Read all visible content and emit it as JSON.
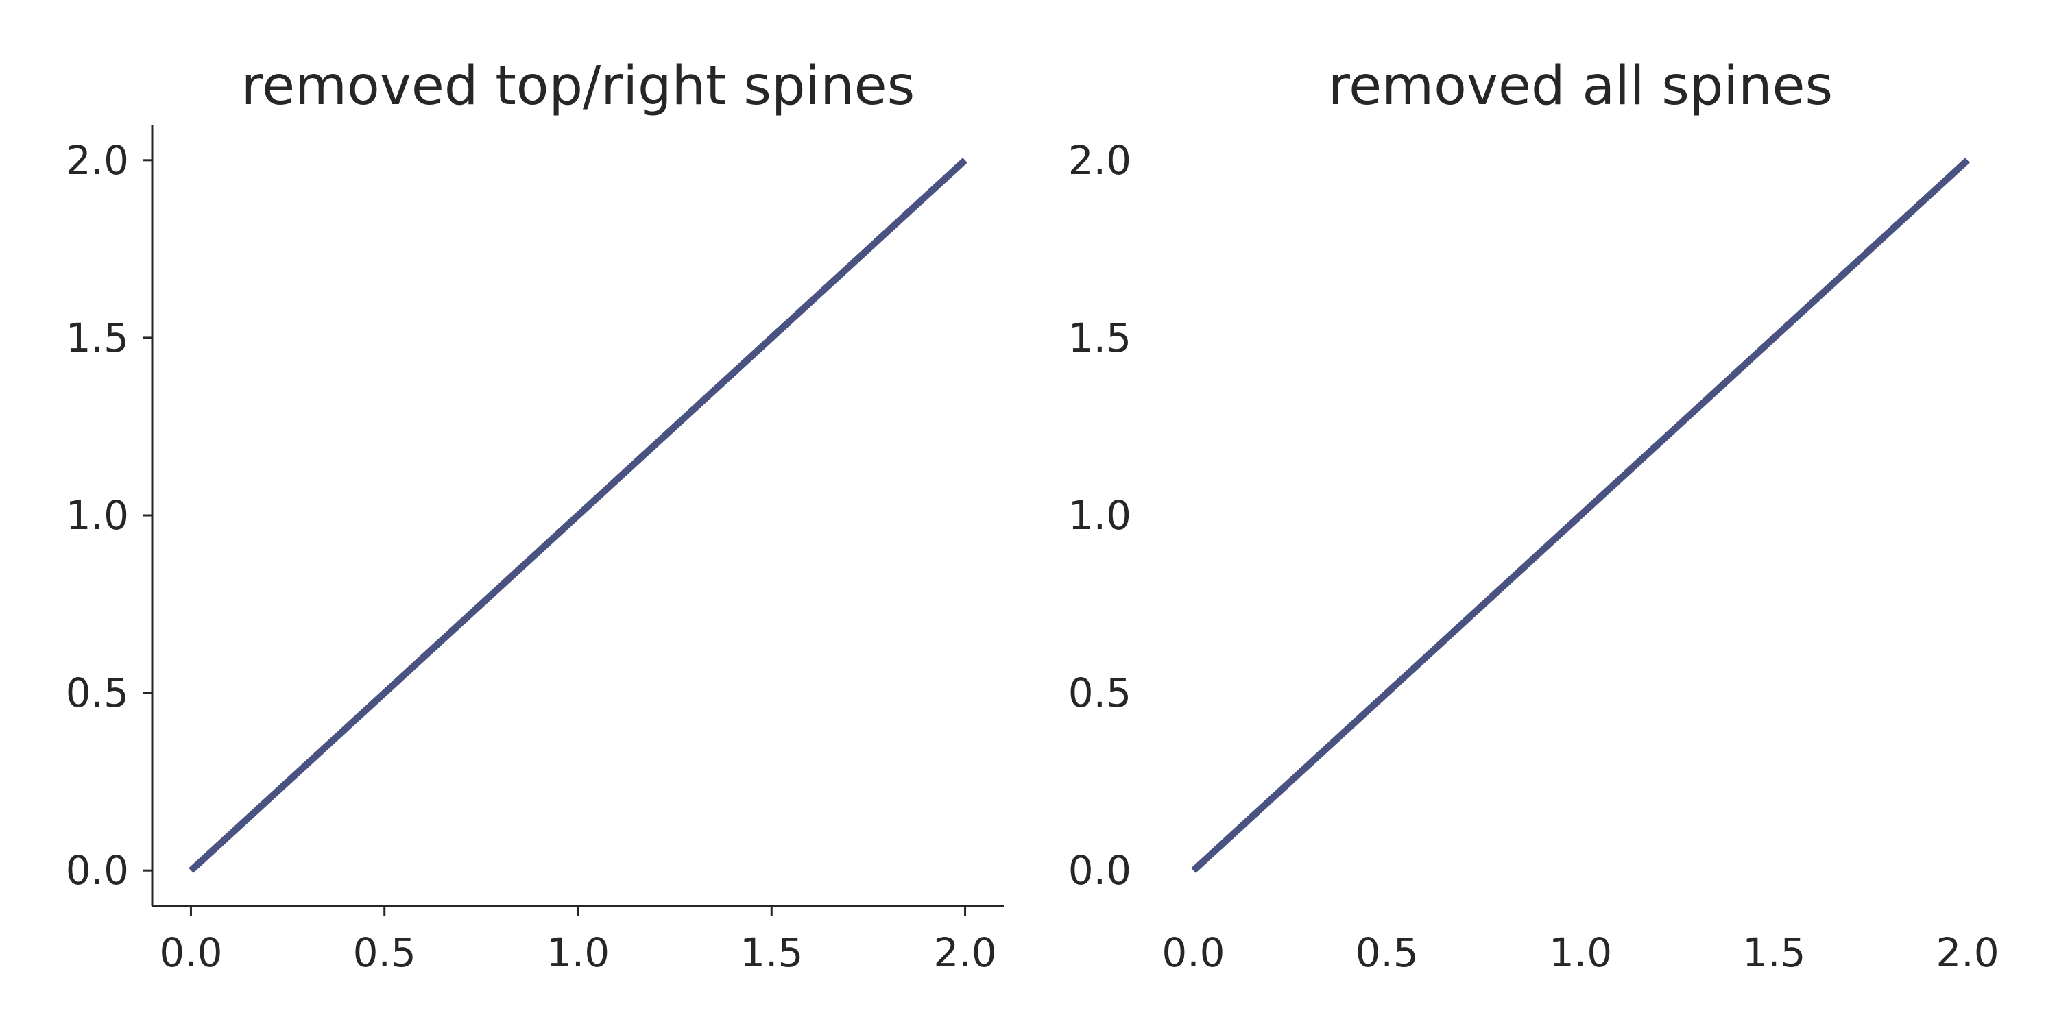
{
  "chart_data": [
    {
      "type": "line",
      "title": "removed top/right spines",
      "xlabel": "",
      "ylabel": "",
      "x": [
        0,
        2
      ],
      "series": [
        {
          "values": [
            0,
            2
          ]
        }
      ],
      "xlim": [
        -0.1,
        2.1
      ],
      "ylim": [
        -0.1,
        2.1
      ],
      "xticks": [
        "0.0",
        "0.5",
        "1.0",
        "1.5",
        "2.0"
      ],
      "yticks": [
        "0.0",
        "0.5",
        "1.0",
        "1.5",
        "2.0"
      ],
      "spines": [
        "left",
        "bottom"
      ],
      "grid": false,
      "line_color": "#4a5282"
    },
    {
      "type": "line",
      "title": "removed all spines",
      "xlabel": "",
      "ylabel": "",
      "x": [
        0,
        2
      ],
      "series": [
        {
          "values": [
            0,
            2
          ]
        }
      ],
      "xlim": [
        -0.1,
        2.1
      ],
      "ylim": [
        -0.1,
        2.1
      ],
      "xticks": [
        "0.0",
        "0.5",
        "1.0",
        "1.5",
        "2.0"
      ],
      "yticks": [
        "0.0",
        "0.5",
        "1.0",
        "1.5",
        "2.0"
      ],
      "spines": [],
      "grid": false,
      "line_color": "#4a5282"
    }
  ]
}
